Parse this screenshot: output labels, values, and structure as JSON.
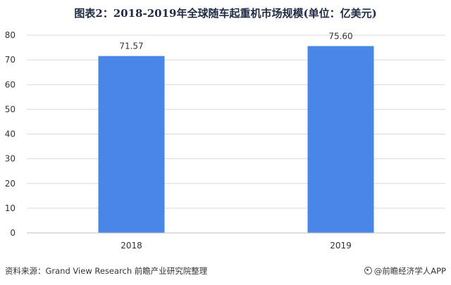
{
  "title": "图表2：2018-2019年全球随车起重机市场规模(单位：亿美元)",
  "footer": {
    "source": "资料来源：Grand View Research 前瞻产业研究院整理",
    "brand": "@前瞻经济学人APP"
  },
  "colors": {
    "bar": "#4a86e8",
    "grid": "#d9d9d9",
    "axis": "#bfbfbf"
  },
  "chart_data": {
    "type": "bar",
    "title": "图表2：2018-2019年全球随车起重机市场规模(单位：亿美元)",
    "categories": [
      "2018",
      "2019"
    ],
    "values": [
      71.57,
      75.6
    ],
    "value_labels": [
      "71.57",
      "75.60"
    ],
    "yticks": [
      "0",
      "10",
      "20",
      "30",
      "40",
      "50",
      "60",
      "70",
      "80"
    ],
    "ylim": [
      0,
      80
    ],
    "xlabel": "",
    "ylabel": "",
    "grid": true,
    "legend": false
  }
}
